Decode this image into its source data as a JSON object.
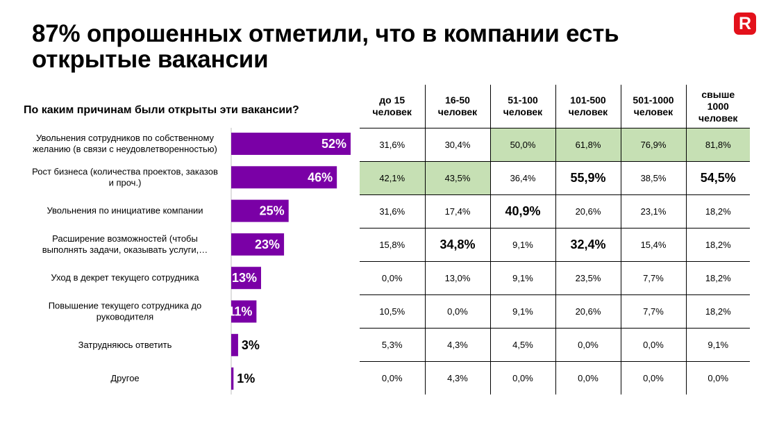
{
  "title": "87% опрошенных отметили, что в компании есть открытые вакансии",
  "logo": "R",
  "question": "По каким причинам были открыты эти вакансии?",
  "colors": {
    "bar": "#7a00a6",
    "highlight": "#c6e0b4",
    "logo": "#e3111b"
  },
  "chart_data": {
    "type": "bar",
    "orientation": "horizontal",
    "categories": [
      "Увольнения сотрудников по собственному желанию (в связи с неудовлетворенностью)",
      "Рост бизнеса (количества проектов, заказов и проч.)",
      "Увольнения по инициативе компании",
      "Расширение возможностей (чтобы выполнять задачи, оказывать услуги,…",
      "Уход в декрет текущего сотрудника",
      "Повышение текущего сотрудника до руководителя",
      "Затрудняюсь ответить",
      "Другое"
    ],
    "category_lines": [
      [
        "Увольнения сотрудников по собственному",
        "желанию (в связи с неудовлетворенностью)"
      ],
      [
        "Рост бизнеса (количества проектов, заказов",
        "и проч.)"
      ],
      [
        "Увольнения по инициативе компании"
      ],
      [
        "Расширение возможностей (чтобы",
        "выполнять задачи, оказывать услуги,…"
      ],
      [
        "Уход в декрет текущего сотрудника"
      ],
      [
        "Повышение текущего сотрудника до",
        "руководителя"
      ],
      [
        "Затрудняюсь ответить"
      ],
      [
        "Другое"
      ]
    ],
    "values": [
      52,
      46,
      25,
      23,
      13,
      11,
      3,
      1
    ],
    "labels": [
      "52%",
      "46%",
      "25%",
      "23%",
      "13%",
      "11%",
      "3%",
      "1%"
    ]
  },
  "table": {
    "headers": [
      [
        "до 15",
        "человек"
      ],
      [
        "16-50",
        "человек"
      ],
      [
        "51-100",
        "человек"
      ],
      [
        "101-500",
        "человек"
      ],
      [
        "501-1000",
        "человек"
      ],
      [
        "свыше",
        "1000",
        "человек"
      ]
    ],
    "rows": [
      [
        "31,6%",
        "30,4%",
        "50,0%",
        "61,8%",
        "76,9%",
        "81,8%"
      ],
      [
        "42,1%",
        "43,5%",
        "36,4%",
        "55,9%",
        "38,5%",
        "54,5%"
      ],
      [
        "31,6%",
        "17,4%",
        "40,9%",
        "20,6%",
        "23,1%",
        "18,2%"
      ],
      [
        "15,8%",
        "34,8%",
        "9,1%",
        "32,4%",
        "15,4%",
        "18,2%"
      ],
      [
        "0,0%",
        "13,0%",
        "9,1%",
        "23,5%",
        "7,7%",
        "18,2%"
      ],
      [
        "10,5%",
        "0,0%",
        "9,1%",
        "20,6%",
        "7,7%",
        "18,2%"
      ],
      [
        "5,3%",
        "4,3%",
        "4,5%",
        "0,0%",
        "0,0%",
        "9,1%"
      ],
      [
        "0,0%",
        "4,3%",
        "0,0%",
        "0,0%",
        "0,0%",
        "0,0%"
      ]
    ],
    "highlighted": [
      [
        0,
        2
      ],
      [
        0,
        3
      ],
      [
        0,
        4
      ],
      [
        0,
        5
      ],
      [
        1,
        0
      ],
      [
        1,
        1
      ]
    ],
    "bold": [
      [
        1,
        3
      ],
      [
        1,
        5
      ],
      [
        2,
        2
      ],
      [
        3,
        1
      ],
      [
        3,
        3
      ]
    ]
  }
}
